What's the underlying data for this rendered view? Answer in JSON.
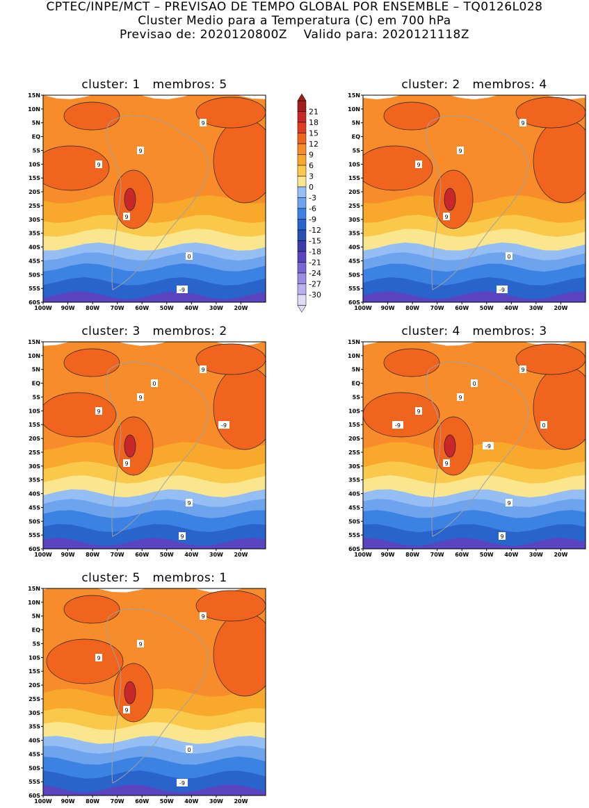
{
  "header": {
    "line1": "CPTEC/INPE/MCT – PREVISAO DE TEMPO GLOBAL POR ENSEMBLE – TQ0126L028",
    "line2": "Cluster Medio para a Temperatura (C) em 700 hPa",
    "line3": "Previsao de: 2020120800Z    Valido para: 2020121118Z"
  },
  "panels": [
    {
      "title": "cluster: 1   membros: 5",
      "labels": [
        "9",
        "9",
        "9",
        "9",
        "0",
        "-9"
      ]
    },
    {
      "title": "cluster: 2   membros: 4",
      "labels": [
        "9",
        "9",
        "9",
        "9",
        "0",
        "-9"
      ]
    },
    {
      "title": "cluster: 3   membros: 2",
      "labels": [
        "9",
        "9",
        "9",
        "9",
        "9",
        "9",
        "0",
        "-9"
      ]
    },
    {
      "title": "cluster: 4   membros: 3",
      "labels": [
        "9",
        "9",
        "9",
        "9",
        "9",
        "9",
        "0",
        "0",
        "-9",
        "-9"
      ]
    },
    {
      "title": "cluster: 5   membros: 1",
      "labels": [
        "9",
        "9",
        "9",
        "9",
        "0",
        "-9"
      ]
    }
  ],
  "axes": {
    "lat_ticks": [
      "15N",
      "10N",
      "5N",
      "EQ",
      "5S",
      "10S",
      "15S",
      "20S",
      "25S",
      "30S",
      "35S",
      "40S",
      "45S",
      "50S",
      "55S",
      "60S"
    ],
    "lon_ticks": [
      "100W",
      "90W",
      "80W",
      "70W",
      "60W",
      "50W",
      "40W",
      "30W",
      "20W"
    ]
  },
  "colorbar": {
    "labels": [
      "21",
      "18",
      "15",
      "12",
      "9",
      "6",
      "3",
      "0",
      "-3",
      "-6",
      "-9",
      "-12",
      "-15",
      "-18",
      "-21",
      "-24",
      "-27",
      "-30"
    ],
    "colors": [
      "#a01e1e",
      "#c8282a",
      "#e03c1e",
      "#f0641e",
      "#f88c2a",
      "#f8a82a",
      "#fac84a",
      "#fae68c",
      "#94bef4",
      "#6ea4ee",
      "#3c82e2",
      "#2864cc",
      "#2850b0",
      "#3c3ca8",
      "#5a44c0",
      "#7868d4",
      "#9c8ce2",
      "#bcb0ee",
      "#e0dcf6"
    ]
  },
  "palette": {
    "t_ge12": "#f0641e",
    "t_9_12": "#f88c2a",
    "t_6_9": "#f8a82a",
    "t_3_6": "#fac84a",
    "t_0_3": "#fae68c",
    "t_m3_0": "#94bef4",
    "t_m6_m3": "#6ea4ee",
    "t_m9_m6": "#3c82e2",
    "t_m12_m9": "#2864cc",
    "t_cold": "#5a44c0",
    "hot": "#c8282a",
    "coast": "#a0a0a0"
  }
}
